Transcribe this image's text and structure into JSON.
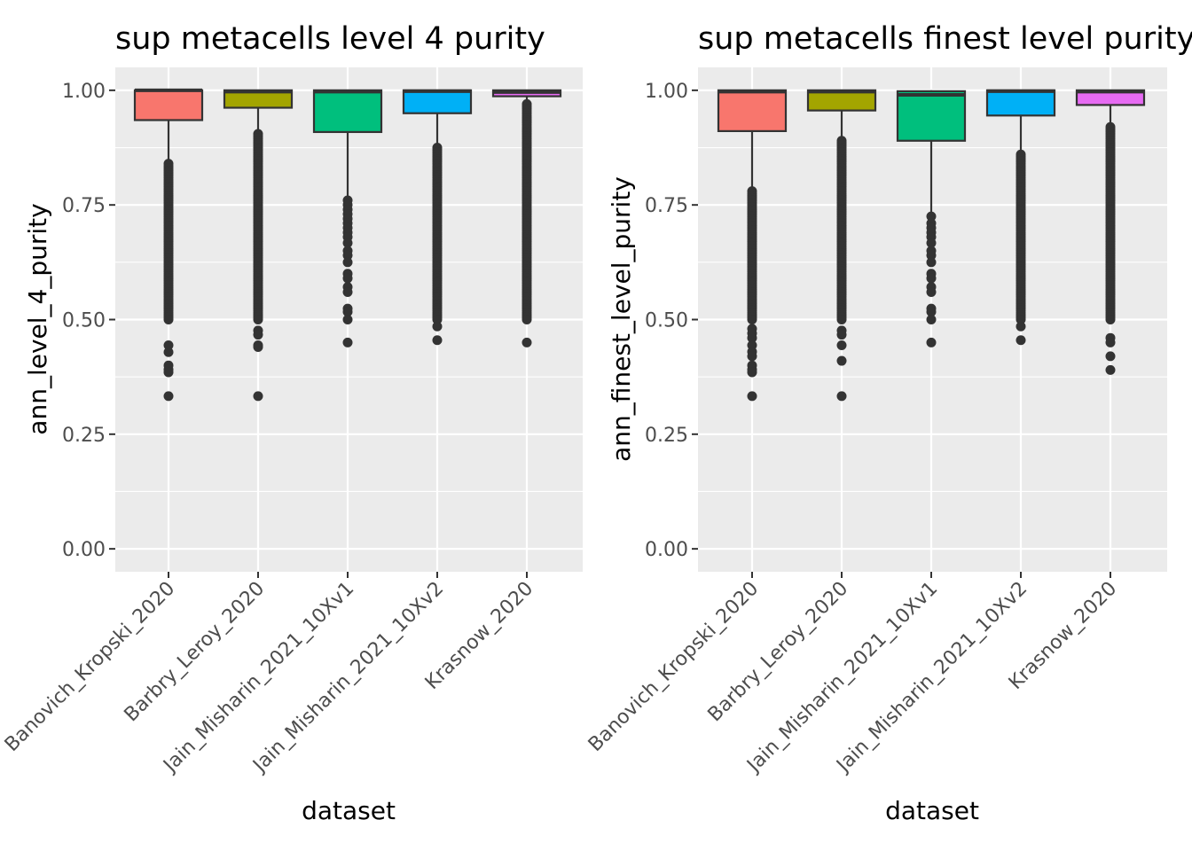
{
  "chart_data": [
    {
      "type": "boxplot",
      "title": "sup metacells level 4 purity",
      "xlabel": "dataset",
      "ylabel": "ann_level_4_purity",
      "ylim": [
        -0.05,
        1.05
      ],
      "yticks": [
        0.0,
        0.25,
        0.5,
        0.75,
        1.0
      ],
      "ytick_labels": [
        "0.00",
        "0.25",
        "0.50",
        "0.75",
        "1.00"
      ],
      "grid": true,
      "legend": "none",
      "categories": [
        "Banovich_Kropski_2020",
        "Barbry_Leroy_2020",
        "Jain_Misharin_2021_10Xv1",
        "Jain_Misharin_2021_10Xv2",
        "Krasnow_2020"
      ],
      "colors": [
        "#F8766D",
        "#A3A500",
        "#00BF7D",
        "#00B0F6",
        "#E76BF3"
      ],
      "boxes": [
        {
          "q1": 0.935,
          "median": 1.0,
          "q3": 1.0,
          "whisker_low": 0.842,
          "whisker_high": 1.0,
          "outliers": [
            0.84,
            0.835,
            0.83,
            0.825,
            0.82,
            0.815,
            0.81,
            0.805,
            0.8,
            0.795,
            0.79,
            0.785,
            0.78,
            0.775,
            0.77,
            0.765,
            0.76,
            0.755,
            0.75,
            0.745,
            0.74,
            0.735,
            0.73,
            0.725,
            0.72,
            0.715,
            0.71,
            0.705,
            0.7,
            0.695,
            0.69,
            0.685,
            0.68,
            0.675,
            0.67,
            0.665,
            0.66,
            0.655,
            0.65,
            0.645,
            0.64,
            0.635,
            0.63,
            0.625,
            0.62,
            0.615,
            0.61,
            0.605,
            0.6,
            0.595,
            0.59,
            0.585,
            0.58,
            0.575,
            0.57,
            0.565,
            0.56,
            0.555,
            0.55,
            0.545,
            0.54,
            0.535,
            0.53,
            0.525,
            0.52,
            0.515,
            0.51,
            0.505,
            0.5,
            0.444,
            0.429,
            0.4,
            0.391,
            0.385,
            0.333
          ]
        },
        {
          "q1": 0.962,
          "median": 0.997,
          "q3": 1.0,
          "whisker_low": 0.905,
          "whisker_high": 1.0,
          "outliers": [
            0.905,
            0.9,
            0.895,
            0.89,
            0.885,
            0.88,
            0.875,
            0.87,
            0.865,
            0.86,
            0.855,
            0.85,
            0.845,
            0.84,
            0.835,
            0.83,
            0.825,
            0.82,
            0.815,
            0.81,
            0.805,
            0.8,
            0.795,
            0.79,
            0.785,
            0.78,
            0.775,
            0.77,
            0.765,
            0.76,
            0.755,
            0.75,
            0.745,
            0.74,
            0.735,
            0.73,
            0.725,
            0.72,
            0.715,
            0.71,
            0.705,
            0.7,
            0.695,
            0.69,
            0.685,
            0.68,
            0.675,
            0.67,
            0.665,
            0.66,
            0.655,
            0.65,
            0.645,
            0.64,
            0.635,
            0.63,
            0.625,
            0.62,
            0.615,
            0.61,
            0.605,
            0.6,
            0.595,
            0.59,
            0.585,
            0.58,
            0.575,
            0.57,
            0.565,
            0.56,
            0.555,
            0.55,
            0.545,
            0.54,
            0.535,
            0.53,
            0.525,
            0.52,
            0.515,
            0.51,
            0.505,
            0.5,
            0.476,
            0.467,
            0.444,
            0.44,
            0.333
          ]
        },
        {
          "q1": 0.909,
          "median": 0.997,
          "q3": 1.0,
          "whisker_low": 0.76,
          "whisker_high": 1.0,
          "outliers": [
            0.76,
            0.75,
            0.74,
            0.73,
            0.72,
            0.71,
            0.7,
            0.69,
            0.68,
            0.667,
            0.65,
            0.64,
            0.625,
            0.6,
            0.59,
            0.571,
            0.56,
            0.524,
            0.517,
            0.5,
            0.45
          ]
        },
        {
          "q1": 0.95,
          "median": 0.998,
          "q3": 1.0,
          "whisker_low": 0.875,
          "whisker_high": 1.0,
          "outliers": [
            0.875,
            0.87,
            0.865,
            0.86,
            0.855,
            0.85,
            0.845,
            0.84,
            0.835,
            0.83,
            0.825,
            0.82,
            0.815,
            0.81,
            0.805,
            0.8,
            0.795,
            0.79,
            0.785,
            0.78,
            0.775,
            0.77,
            0.765,
            0.76,
            0.755,
            0.75,
            0.745,
            0.74,
            0.735,
            0.73,
            0.725,
            0.72,
            0.715,
            0.71,
            0.705,
            0.7,
            0.695,
            0.69,
            0.685,
            0.68,
            0.675,
            0.67,
            0.665,
            0.66,
            0.655,
            0.65,
            0.645,
            0.64,
            0.635,
            0.63,
            0.625,
            0.62,
            0.615,
            0.61,
            0.605,
            0.6,
            0.595,
            0.59,
            0.585,
            0.58,
            0.575,
            0.57,
            0.565,
            0.56,
            0.555,
            0.55,
            0.545,
            0.54,
            0.535,
            0.53,
            0.525,
            0.52,
            0.515,
            0.51,
            0.505,
            0.5,
            0.485,
            0.455
          ]
        },
        {
          "q1": 0.987,
          "median": 0.996,
          "q3": 1.0,
          "whisker_low": 0.97,
          "whisker_high": 1.0,
          "outliers": [
            0.97,
            0.965,
            0.96,
            0.955,
            0.95,
            0.945,
            0.94,
            0.935,
            0.93,
            0.925,
            0.92,
            0.915,
            0.91,
            0.905,
            0.9,
            0.895,
            0.89,
            0.885,
            0.88,
            0.875,
            0.87,
            0.865,
            0.86,
            0.855,
            0.85,
            0.845,
            0.84,
            0.835,
            0.83,
            0.825,
            0.82,
            0.815,
            0.81,
            0.805,
            0.8,
            0.795,
            0.79,
            0.785,
            0.78,
            0.775,
            0.77,
            0.765,
            0.76,
            0.755,
            0.75,
            0.745,
            0.74,
            0.735,
            0.73,
            0.725,
            0.72,
            0.715,
            0.71,
            0.705,
            0.7,
            0.695,
            0.69,
            0.685,
            0.68,
            0.675,
            0.67,
            0.665,
            0.66,
            0.655,
            0.65,
            0.645,
            0.64,
            0.635,
            0.63,
            0.625,
            0.62,
            0.615,
            0.61,
            0.605,
            0.6,
            0.595,
            0.59,
            0.585,
            0.58,
            0.575,
            0.57,
            0.565,
            0.56,
            0.555,
            0.55,
            0.545,
            0.54,
            0.535,
            0.53,
            0.525,
            0.52,
            0.515,
            0.51,
            0.505,
            0.5,
            0.45
          ]
        }
      ]
    },
    {
      "type": "boxplot",
      "title": "sup metacells finest level purity",
      "xlabel": "dataset",
      "ylabel": "ann_finest_level_purity",
      "ylim": [
        -0.05,
        1.05
      ],
      "yticks": [
        0.0,
        0.25,
        0.5,
        0.75,
        1.0
      ],
      "ytick_labels": [
        "0.00",
        "0.25",
        "0.50",
        "0.75",
        "1.00"
      ],
      "grid": true,
      "legend": "none",
      "categories": [
        "Banovich_Kropski_2020",
        "Barbry_Leroy_2020",
        "Jain_Misharin_2021_10Xv1",
        "Jain_Misharin_2021_10Xv2",
        "Krasnow_2020"
      ],
      "colors": [
        "#F8766D",
        "#A3A500",
        "#00BF7D",
        "#00B0F6",
        "#E76BF3"
      ],
      "boxes": [
        {
          "q1": 0.911,
          "median": 0.997,
          "q3": 1.0,
          "whisker_low": 0.78,
          "whisker_high": 1.0,
          "outliers": [
            0.78,
            0.775,
            0.77,
            0.765,
            0.76,
            0.755,
            0.75,
            0.745,
            0.74,
            0.735,
            0.73,
            0.725,
            0.72,
            0.715,
            0.71,
            0.705,
            0.7,
            0.695,
            0.69,
            0.685,
            0.68,
            0.675,
            0.67,
            0.665,
            0.66,
            0.655,
            0.65,
            0.645,
            0.64,
            0.635,
            0.63,
            0.625,
            0.62,
            0.615,
            0.61,
            0.605,
            0.6,
            0.595,
            0.59,
            0.585,
            0.58,
            0.575,
            0.57,
            0.565,
            0.56,
            0.555,
            0.55,
            0.545,
            0.54,
            0.535,
            0.53,
            0.525,
            0.52,
            0.515,
            0.51,
            0.505,
            0.5,
            0.48,
            0.47,
            0.46,
            0.444,
            0.43,
            0.42,
            0.4,
            0.391,
            0.385,
            0.333
          ]
        },
        {
          "q1": 0.956,
          "median": 0.997,
          "q3": 1.0,
          "whisker_low": 0.89,
          "whisker_high": 1.0,
          "outliers": [
            0.89,
            0.885,
            0.88,
            0.875,
            0.87,
            0.865,
            0.86,
            0.855,
            0.85,
            0.845,
            0.84,
            0.835,
            0.83,
            0.825,
            0.82,
            0.815,
            0.81,
            0.805,
            0.8,
            0.795,
            0.79,
            0.785,
            0.78,
            0.775,
            0.77,
            0.765,
            0.76,
            0.755,
            0.75,
            0.745,
            0.74,
            0.735,
            0.73,
            0.725,
            0.72,
            0.715,
            0.71,
            0.705,
            0.7,
            0.695,
            0.69,
            0.685,
            0.68,
            0.675,
            0.67,
            0.665,
            0.66,
            0.655,
            0.65,
            0.645,
            0.64,
            0.635,
            0.63,
            0.625,
            0.62,
            0.615,
            0.61,
            0.605,
            0.6,
            0.595,
            0.59,
            0.585,
            0.58,
            0.575,
            0.57,
            0.565,
            0.56,
            0.555,
            0.55,
            0.545,
            0.54,
            0.535,
            0.53,
            0.525,
            0.52,
            0.515,
            0.51,
            0.505,
            0.5,
            0.476,
            0.467,
            0.444,
            0.41,
            0.333
          ]
        },
        {
          "q1": 0.89,
          "median": 0.99,
          "q3": 0.998,
          "whisker_low": 0.725,
          "whisker_high": 1.0,
          "outliers": [
            0.725,
            0.71,
            0.7,
            0.69,
            0.68,
            0.667,
            0.65,
            0.64,
            0.625,
            0.6,
            0.59,
            0.571,
            0.56,
            0.524,
            0.517,
            0.5,
            0.45
          ]
        },
        {
          "q1": 0.945,
          "median": 0.998,
          "q3": 1.0,
          "whisker_low": 0.86,
          "whisker_high": 1.0,
          "outliers": [
            0.86,
            0.855,
            0.85,
            0.845,
            0.84,
            0.835,
            0.83,
            0.825,
            0.82,
            0.815,
            0.81,
            0.805,
            0.8,
            0.795,
            0.79,
            0.785,
            0.78,
            0.775,
            0.77,
            0.765,
            0.76,
            0.755,
            0.75,
            0.745,
            0.74,
            0.735,
            0.73,
            0.725,
            0.72,
            0.715,
            0.71,
            0.705,
            0.7,
            0.695,
            0.69,
            0.685,
            0.68,
            0.675,
            0.67,
            0.665,
            0.66,
            0.655,
            0.65,
            0.645,
            0.64,
            0.635,
            0.63,
            0.625,
            0.62,
            0.615,
            0.61,
            0.605,
            0.6,
            0.595,
            0.59,
            0.585,
            0.58,
            0.575,
            0.57,
            0.565,
            0.56,
            0.555,
            0.55,
            0.545,
            0.54,
            0.535,
            0.53,
            0.525,
            0.52,
            0.515,
            0.51,
            0.505,
            0.5,
            0.485,
            0.455
          ]
        },
        {
          "q1": 0.968,
          "median": 0.997,
          "q3": 1.0,
          "whisker_low": 0.92,
          "whisker_high": 1.0,
          "outliers": [
            0.92,
            0.915,
            0.91,
            0.905,
            0.9,
            0.895,
            0.89,
            0.885,
            0.88,
            0.875,
            0.87,
            0.865,
            0.86,
            0.855,
            0.85,
            0.845,
            0.84,
            0.835,
            0.83,
            0.825,
            0.82,
            0.815,
            0.81,
            0.805,
            0.8,
            0.795,
            0.79,
            0.785,
            0.78,
            0.775,
            0.77,
            0.765,
            0.76,
            0.755,
            0.75,
            0.745,
            0.74,
            0.735,
            0.73,
            0.725,
            0.72,
            0.715,
            0.71,
            0.705,
            0.7,
            0.695,
            0.69,
            0.685,
            0.68,
            0.675,
            0.67,
            0.665,
            0.66,
            0.655,
            0.65,
            0.645,
            0.64,
            0.635,
            0.63,
            0.625,
            0.62,
            0.615,
            0.61,
            0.605,
            0.6,
            0.595,
            0.59,
            0.585,
            0.58,
            0.575,
            0.57,
            0.565,
            0.56,
            0.555,
            0.55,
            0.545,
            0.54,
            0.535,
            0.53,
            0.525,
            0.52,
            0.515,
            0.51,
            0.505,
            0.5,
            0.46,
            0.45,
            0.42,
            0.39
          ]
        }
      ]
    }
  ]
}
